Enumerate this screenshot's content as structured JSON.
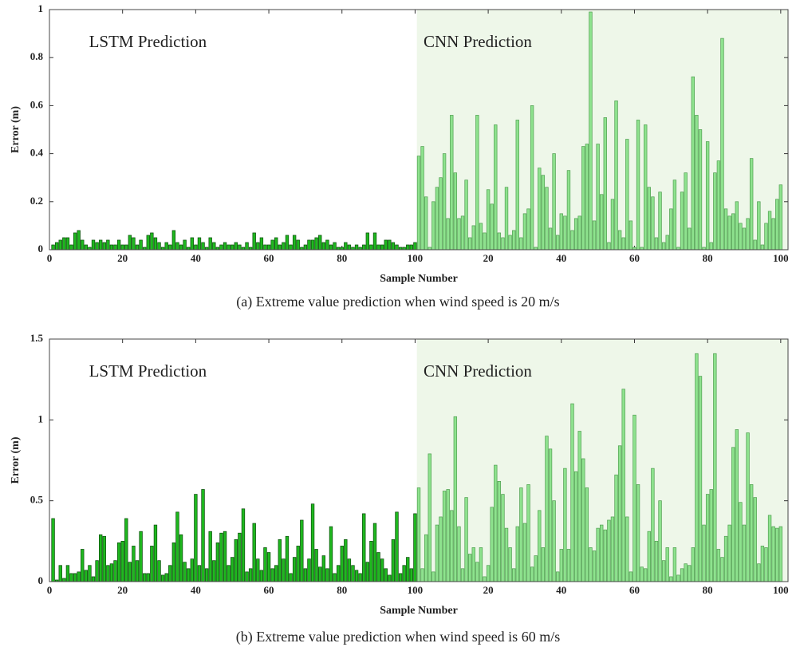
{
  "chart_data": [
    {
      "type": "bar",
      "xlabel": "Sample Number",
      "ylabel": "Error (m)",
      "caption": "(a) Extreme value prediction when wind speed is 20 m/s",
      "xlim": [
        0,
        202
      ],
      "ylim": [
        0,
        1
      ],
      "xticks": [
        0,
        20,
        40,
        60,
        80,
        100,
        {
          "value": 120,
          "label": "20"
        },
        {
          "value": 140,
          "label": "40"
        },
        {
          "value": 160,
          "label": "60"
        },
        {
          "value": 180,
          "label": "80"
        },
        {
          "value": 200,
          "label": "100"
        }
      ],
      "yticks": [
        0,
        0.2,
        0.4,
        0.6,
        0.8,
        1
      ],
      "series": [
        {
          "name": "LSTM Prediction",
          "color": "#1fb81f",
          "edge": "#0a4a0a",
          "shade": "#ffffff",
          "x": [
            1,
            2,
            3,
            4,
            5,
            6,
            7,
            8,
            9,
            10,
            11,
            12,
            13,
            14,
            15,
            16,
            17,
            18,
            19,
            20,
            21,
            22,
            23,
            24,
            25,
            26,
            27,
            28,
            29,
            30,
            31,
            32,
            33,
            34,
            35,
            36,
            37,
            38,
            39,
            40,
            41,
            42,
            43,
            44,
            45,
            46,
            47,
            48,
            49,
            50,
            51,
            52,
            53,
            54,
            55,
            56,
            57,
            58,
            59,
            60,
            61,
            62,
            63,
            64,
            65,
            66,
            67,
            68,
            69,
            70,
            71,
            72,
            73,
            74,
            75,
            76,
            77,
            78,
            79,
            80,
            81,
            82,
            83,
            84,
            85,
            86,
            87,
            88,
            89,
            90,
            91,
            92,
            93,
            94,
            95,
            96,
            97,
            98,
            99,
            100
          ],
          "values": [
            0.02,
            0.03,
            0.04,
            0.05,
            0.05,
            0.02,
            0.07,
            0.08,
            0.04,
            0.02,
            0.01,
            0.04,
            0.03,
            0.04,
            0.03,
            0.04,
            0.02,
            0.02,
            0.04,
            0.02,
            0.02,
            0.06,
            0.05,
            0.02,
            0.04,
            0.01,
            0.06,
            0.07,
            0.05,
            0.03,
            0.01,
            0.03,
            0.02,
            0.08,
            0.03,
            0.02,
            0.04,
            0.01,
            0.05,
            0.02,
            0.05,
            0.03,
            0.01,
            0.05,
            0.03,
            0.01,
            0.02,
            0.03,
            0.02,
            0.02,
            0.03,
            0.02,
            0.01,
            0.03,
            0.01,
            0.07,
            0.03,
            0.05,
            0.02,
            0.02,
            0.04,
            0.05,
            0.02,
            0.03,
            0.06,
            0.02,
            0.06,
            0.04,
            0.01,
            0.02,
            0.04,
            0.04,
            0.05,
            0.06,
            0.03,
            0.04,
            0.02,
            0.03,
            0.01,
            0.01,
            0.03,
            0.02,
            0.01,
            0.02,
            0.01,
            0.02,
            0.07,
            0.02,
            0.07,
            0.02,
            0.02,
            0.04,
            0.04,
            0.03,
            0.02,
            0.01,
            0.01,
            0.02,
            0.02,
            0.03
          ]
        },
        {
          "name": "CNN Prediction",
          "color": "#8ee28e",
          "edge": "#4f9e4f",
          "shade": "#eef7e9",
          "x": [
            101,
            102,
            103,
            104,
            105,
            106,
            107,
            108,
            109,
            110,
            111,
            112,
            113,
            114,
            115,
            116,
            117,
            118,
            119,
            120,
            121,
            122,
            123,
            124,
            125,
            126,
            127,
            128,
            129,
            130,
            131,
            132,
            133,
            134,
            135,
            136,
            137,
            138,
            139,
            140,
            141,
            142,
            143,
            144,
            145,
            146,
            147,
            148,
            149,
            150,
            151,
            152,
            153,
            154,
            155,
            156,
            157,
            158,
            159,
            160,
            161,
            162,
            163,
            164,
            165,
            166,
            167,
            168,
            169,
            170,
            171,
            172,
            173,
            174,
            175,
            176,
            177,
            178,
            179,
            180,
            181,
            182,
            183,
            184,
            185,
            186,
            187,
            188,
            189,
            190,
            191,
            192,
            193,
            194,
            195,
            196,
            197,
            198,
            199,
            200
          ],
          "values": [
            0.39,
            0.43,
            0.22,
            0.01,
            0.2,
            0.26,
            0.3,
            0.4,
            0.13,
            0.56,
            0.32,
            0.13,
            0.14,
            0.29,
            0.05,
            0.1,
            0.56,
            0.11,
            0.07,
            0.25,
            0.19,
            0.52,
            0.07,
            0.05,
            0.26,
            0.06,
            0.08,
            0.54,
            0.05,
            0.15,
            0.17,
            0.6,
            0.01,
            0.34,
            0.31,
            0.26,
            0.09,
            0.4,
            0.06,
            0.15,
            0.14,
            0.33,
            0.08,
            0.13,
            0.14,
            0.43,
            0.44,
            0.99,
            0.12,
            0.44,
            0.23,
            0.55,
            0.03,
            0.21,
            0.62,
            0.08,
            0.05,
            0.46,
            0.12,
            0.01,
            0.54,
            0.01,
            0.52,
            0.26,
            0.22,
            0.05,
            0.24,
            0.03,
            0.06,
            0.17,
            0.29,
            0.01,
            0.24,
            0.32,
            0.09,
            0.72,
            0.56,
            0.5,
            0.01,
            0.45,
            0.03,
            0.32,
            0.37,
            0.88,
            0.17,
            0.14,
            0.15,
            0.2,
            0.11,
            0.09,
            0.13,
            0.38,
            0.04,
            0.2,
            0.02,
            0.11,
            0.16,
            0.13,
            0.21,
            0.27
          ]
        }
      ]
    },
    {
      "type": "bar",
      "xlabel": "Sample Number",
      "ylabel": "Error (m)",
      "caption": "(b) Extreme value prediction when wind speed is 60 m/s",
      "xlim": [
        0,
        202
      ],
      "ylim": [
        0,
        1.5
      ],
      "xticks": [
        0,
        20,
        40,
        60,
        80,
        100,
        {
          "value": 120,
          "label": "20"
        },
        {
          "value": 140,
          "label": "40"
        },
        {
          "value": 160,
          "label": "60"
        },
        {
          "value": 180,
          "label": "80"
        },
        {
          "value": 200,
          "label": "100"
        }
      ],
      "yticks": [
        0,
        0.5,
        1,
        1.5
      ],
      "series": [
        {
          "name": "LSTM Prediction",
          "color": "#1fb81f",
          "edge": "#0a4a0a",
          "shade": "#ffffff",
          "x": [
            1,
            2,
            3,
            4,
            5,
            6,
            7,
            8,
            9,
            10,
            11,
            12,
            13,
            14,
            15,
            16,
            17,
            18,
            19,
            20,
            21,
            22,
            23,
            24,
            25,
            26,
            27,
            28,
            29,
            30,
            31,
            32,
            33,
            34,
            35,
            36,
            37,
            38,
            39,
            40,
            41,
            42,
            43,
            44,
            45,
            46,
            47,
            48,
            49,
            50,
            51,
            52,
            53,
            54,
            55,
            56,
            57,
            58,
            59,
            60,
            61,
            62,
            63,
            64,
            65,
            66,
            67,
            68,
            69,
            70,
            71,
            72,
            73,
            74,
            75,
            76,
            77,
            78,
            79,
            80,
            81,
            82,
            83,
            84,
            85,
            86,
            87,
            88,
            89,
            90,
            91,
            92,
            93,
            94,
            95,
            96,
            97,
            98,
            99,
            100
          ],
          "values": [
            0.39,
            0.01,
            0.1,
            0.02,
            0.1,
            0.05,
            0.05,
            0.06,
            0.2,
            0.07,
            0.1,
            0.03,
            0.13,
            0.29,
            0.28,
            0.1,
            0.11,
            0.13,
            0.24,
            0.25,
            0.39,
            0.12,
            0.22,
            0.13,
            0.31,
            0.05,
            0.05,
            0.22,
            0.35,
            0.13,
            0.04,
            0.05,
            0.1,
            0.24,
            0.43,
            0.29,
            0.12,
            0.08,
            0.14,
            0.54,
            0.1,
            0.57,
            0.08,
            0.31,
            0.13,
            0.24,
            0.3,
            0.31,
            0.1,
            0.15,
            0.26,
            0.3,
            0.45,
            0.06,
            0.08,
            0.36,
            0.14,
            0.07,
            0.21,
            0.18,
            0.08,
            0.1,
            0.26,
            0.14,
            0.28,
            0.05,
            0.15,
            0.22,
            0.38,
            0.08,
            0.14,
            0.48,
            0.2,
            0.09,
            0.16,
            0.08,
            0.34,
            0.05,
            0.1,
            0.22,
            0.26,
            0.14,
            0.1,
            0.07,
            0.05,
            0.42,
            0.12,
            0.25,
            0.36,
            0.18,
            0.14,
            0.08,
            0.04,
            0.26,
            0.43,
            0.05,
            0.1,
            0.15,
            0.08,
            0.42
          ]
        },
        {
          "name": "CNN Prediction",
          "color": "#8ee28e",
          "edge": "#4f9e4f",
          "shade": "#eef7e9",
          "x": [
            101,
            102,
            103,
            104,
            105,
            106,
            107,
            108,
            109,
            110,
            111,
            112,
            113,
            114,
            115,
            116,
            117,
            118,
            119,
            120,
            121,
            122,
            123,
            124,
            125,
            126,
            127,
            128,
            129,
            130,
            131,
            132,
            133,
            134,
            135,
            136,
            137,
            138,
            139,
            140,
            141,
            142,
            143,
            144,
            145,
            146,
            147,
            148,
            149,
            150,
            151,
            152,
            153,
            154,
            155,
            156,
            157,
            158,
            159,
            160,
            161,
            162,
            163,
            164,
            165,
            166,
            167,
            168,
            169,
            170,
            171,
            172,
            173,
            174,
            175,
            176,
            177,
            178,
            179,
            180,
            181,
            182,
            183,
            184,
            185,
            186,
            187,
            188,
            189,
            190,
            191,
            192,
            193,
            194,
            195,
            196,
            197,
            198,
            199,
            200
          ],
          "values": [
            0.58,
            0.08,
            0.29,
            0.79,
            0.06,
            0.35,
            0.4,
            0.56,
            0.57,
            0.44,
            1.02,
            0.34,
            0.08,
            0.52,
            0.17,
            0.21,
            0.12,
            0.21,
            0.03,
            0.1,
            0.46,
            0.72,
            0.62,
            0.54,
            0.33,
            0.21,
            0.08,
            0.34,
            0.58,
            0.36,
            0.6,
            0.09,
            0.16,
            0.44,
            0.21,
            0.9,
            0.82,
            0.5,
            0.06,
            0.2,
            0.7,
            0.2,
            1.1,
            0.68,
            0.93,
            0.76,
            0.58,
            0.21,
            0.19,
            0.33,
            0.35,
            0.32,
            0.38,
            0.4,
            0.66,
            0.84,
            1.19,
            0.4,
            0.06,
            1.03,
            0.6,
            0.09,
            0.08,
            0.31,
            0.7,
            0.25,
            0.5,
            0.13,
            0.21,
            0.03,
            0.21,
            0.04,
            0.08,
            0.11,
            0.1,
            0.21,
            1.41,
            1.27,
            0.35,
            0.54,
            0.57,
            1.41,
            0.2,
            0.15,
            0.28,
            0.35,
            0.83,
            0.94,
            0.49,
            0.35,
            0.92,
            0.6,
            0.52,
            0.11,
            0.22,
            0.21,
            0.41,
            0.34,
            0.33,
            0.34
          ]
        }
      ]
    }
  ]
}
